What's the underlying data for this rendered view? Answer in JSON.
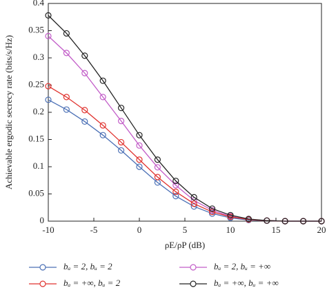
{
  "chart_data": {
    "type": "line",
    "x_label": "ρE/ρP (dB)",
    "y_label": "Achievable ergodic secrecy rate (bits/s/Hz)",
    "x": [
      -10,
      -8,
      -6,
      -4,
      -2,
      0,
      2,
      4,
      6,
      8,
      10,
      12,
      14,
      16,
      18,
      20
    ],
    "series": [
      {
        "name": "bₐ = 2, bᵤ = 2",
        "color": "#4a6fb5",
        "values": [
          0.223,
          0.205,
          0.183,
          0.158,
          0.13,
          0.1,
          0.071,
          0.046,
          0.027,
          0.014,
          0.006,
          0.002,
          0.001,
          0,
          0,
          0
        ]
      },
      {
        "name": "bₐ = 2, bᵤ = +∞",
        "color": "#c25cc8",
        "values": [
          0.34,
          0.309,
          0.272,
          0.228,
          0.184,
          0.139,
          0.099,
          0.066,
          0.038,
          0.02,
          0.009,
          0.003,
          0.001,
          0,
          0,
          0
        ]
      },
      {
        "name": "bₐ = +∞, bᵤ = 2",
        "color": "#e0322e",
        "values": [
          0.248,
          0.228,
          0.204,
          0.176,
          0.145,
          0.113,
          0.081,
          0.054,
          0.032,
          0.017,
          0.008,
          0.003,
          0.001,
          0,
          0,
          0
        ]
      },
      {
        "name": "bₐ = +∞, bᵤ = +∞",
        "color": "#222222",
        "values": [
          0.378,
          0.345,
          0.304,
          0.258,
          0.208,
          0.158,
          0.113,
          0.074,
          0.044,
          0.023,
          0.011,
          0.004,
          0.001,
          0,
          0,
          0
        ]
      }
    ],
    "xlim": [
      -10,
      20
    ],
    "xticks": [
      -10,
      -5,
      0,
      5,
      10,
      15,
      20
    ],
    "ylim": [
      0,
      0.4
    ],
    "yticks": [
      0,
      0.05,
      0.1,
      0.15,
      0.2,
      0.25,
      0.3,
      0.35,
      0.4
    ],
    "grid": false
  }
}
